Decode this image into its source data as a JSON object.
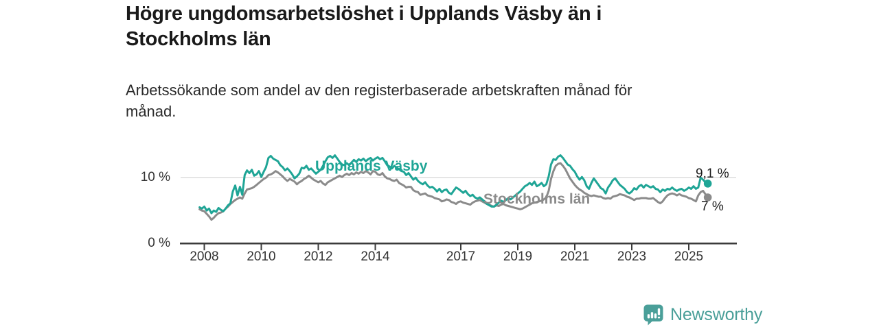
{
  "header": {
    "title_line1": "Högre ungdomsarbetslöshet i Upplands Väsby än i",
    "title_line2": "Stockholms län",
    "subtitle_line1": "Arbetssökande som andel av den registerbaserade arbetskraften månad för",
    "subtitle_line2": "månad."
  },
  "footer": {
    "brand": "Newsworthy",
    "brand_color": "#4a9f99",
    "logo_icon": "bar-chart-speech-bubble-icon"
  },
  "chart_data": {
    "type": "line",
    "title": "Högre ungdomsarbetslöshet i Upplands Väsby än i Stockholms län",
    "subtitle": "Arbetssökande som andel av den registerbaserade arbetskraften månad för månad.",
    "unit": "%",
    "x_start_year": 2007.8333,
    "x_step_years": 0.083333,
    "x_ticks": [
      2008,
      2010,
      2012,
      2014,
      2017,
      2019,
      2021,
      2023,
      2025
    ],
    "y_ticks": [
      {
        "label": "10 %",
        "value": 10
      },
      {
        "label": "0 %",
        "value": 0
      }
    ],
    "ylim": [
      0,
      14.8
    ],
    "xlim": [
      2007.2,
      2026.7
    ],
    "grid": "single horizontal gridline at 10 %",
    "legend_position": "inline labels on lines, end-value labels at right",
    "axis_color": "#3b3b3b",
    "grid_color": "#d9d9d9",
    "series": [
      {
        "name": "Upplands Väsby",
        "color": "#1fa596",
        "end_label": "9,1 %",
        "end_value": 9.1,
        "values": [
          5.5,
          5.3,
          5.6,
          5.0,
          5.3,
          4.6,
          5.0,
          4.8,
          5.4,
          5.1,
          4.9,
          5.3,
          5.8,
          6.1,
          7.9,
          8.8,
          7.3,
          8.6,
          7.4,
          10.4,
          11.1,
          10.7,
          11.2,
          10.3,
          10.5,
          11.0,
          10.1,
          10.9,
          11.6,
          13.0,
          13.3,
          12.9,
          12.7,
          12.5,
          11.9,
          11.6,
          11.1,
          11.4,
          11.0,
          10.5,
          9.9,
          10.2,
          10.6,
          11.5,
          11.4,
          11.8,
          11.2,
          11.4,
          11.0,
          10.6,
          10.9,
          11.2,
          11.8,
          12.5,
          13.1,
          13.3,
          13.0,
          13.4,
          12.9,
          12.4,
          12.0,
          11.9,
          12.2,
          11.9,
          12.3,
          12.7,
          12.4,
          12.8,
          12.6,
          12.9,
          12.5,
          12.8,
          13.0,
          12.6,
          12.9,
          13.1,
          12.8,
          13.0,
          12.5,
          11.9,
          11.7,
          11.4,
          11.8,
          11.5,
          11.3,
          11.0,
          10.9,
          10.4,
          10.7,
          10.2,
          9.7,
          10.0,
          9.5,
          9.2,
          9.0,
          9.3,
          8.8,
          8.5,
          8.6,
          8.3,
          7.9,
          8.3,
          7.8,
          8.1,
          8.2,
          7.7,
          7.5,
          8.0,
          8.5,
          8.3,
          8.0,
          7.7,
          8.0,
          7.5,
          7.2,
          7.4,
          7.0,
          6.8,
          7.0,
          6.7,
          6.4,
          6.0,
          5.8,
          5.6,
          5.6,
          5.9,
          6.2,
          6.5,
          6.3,
          6.6,
          6.9,
          6.7,
          7.0,
          7.3,
          7.6,
          7.9,
          8.3,
          8.7,
          8.9,
          9.2,
          8.9,
          9.4,
          8.7,
          8.9,
          9.2,
          8.7,
          9.0,
          10.2,
          12.0,
          12.8,
          12.7,
          13.2,
          13.4,
          13.0,
          12.5,
          12.0,
          11.8,
          11.3,
          10.9,
          10.2,
          9.7,
          10.1,
          9.6,
          8.7,
          8.3,
          9.2,
          9.9,
          9.4,
          8.9,
          8.4,
          8.2,
          7.6,
          8.5,
          9.0,
          9.6,
          9.9,
          9.4,
          8.9,
          8.6,
          8.3,
          7.8,
          7.6,
          7.9,
          8.4,
          8.2,
          8.7,
          8.9,
          8.5,
          8.9,
          8.7,
          8.5,
          8.7,
          8.3,
          8.2,
          7.8,
          8.2,
          8.0,
          8.3,
          8.2,
          8.5,
          8.2,
          8.0,
          8.2,
          8.3,
          8.0,
          8.2,
          8.5,
          8.3,
          8.7,
          8.3,
          8.5,
          10.0,
          9.7,
          9.3,
          9.1
        ]
      },
      {
        "name": "Stockholms län",
        "color": "#8b8b8b",
        "end_label": "7 %",
        "end_value": 7.0,
        "values": [
          5.2,
          5.0,
          4.9,
          4.5,
          4.1,
          3.6,
          3.9,
          4.3,
          4.6,
          4.7,
          4.9,
          5.3,
          5.6,
          6.0,
          6.3,
          6.6,
          6.8,
          7.0,
          6.8,
          7.6,
          8.2,
          8.3,
          8.4,
          8.6,
          8.9,
          9.2,
          9.5,
          9.8,
          10.0,
          10.4,
          10.5,
          10.7,
          11.0,
          10.8,
          10.5,
          10.2,
          9.8,
          9.5,
          9.8,
          9.6,
          9.4,
          9.0,
          9.3,
          9.5,
          9.8,
          10.0,
          10.3,
          10.0,
          9.7,
          9.5,
          9.3,
          9.5,
          9.1,
          8.9,
          9.3,
          9.5,
          9.7,
          9.9,
          10.1,
          10.3,
          10.1,
          10.4,
          10.6,
          10.4,
          10.7,
          10.5,
          10.8,
          10.6,
          10.9,
          10.7,
          11.0,
          10.8,
          10.5,
          11.0,
          10.9,
          10.5,
          10.4,
          10.7,
          10.2,
          9.9,
          9.8,
          9.6,
          9.5,
          9.7,
          9.2,
          9.0,
          8.8,
          8.5,
          8.6,
          8.6,
          8.1,
          7.9,
          7.8,
          7.4,
          7.5,
          7.6,
          7.3,
          7.2,
          7.1,
          6.9,
          6.8,
          6.7,
          6.4,
          6.5,
          6.7,
          6.6,
          6.3,
          6.2,
          6.0,
          6.3,
          6.4,
          6.2,
          6.1,
          6.0,
          5.9,
          6.2,
          6.4,
          6.5,
          6.6,
          6.4,
          6.2,
          6.0,
          5.9,
          5.7,
          5.6,
          5.8,
          5.7,
          5.9,
          6.0,
          5.8,
          5.7,
          5.6,
          5.5,
          5.4,
          5.3,
          5.2,
          5.3,
          5.5,
          5.7,
          5.9,
          6.1,
          6.2,
          6.3,
          6.4,
          6.5,
          6.7,
          7.0,
          8.0,
          9.8,
          11.0,
          11.8,
          12.1,
          12.2,
          11.8,
          11.3,
          10.6,
          9.9,
          9.4,
          8.9,
          8.5,
          8.2,
          8.0,
          7.7,
          7.5,
          7.3,
          7.2,
          7.3,
          7.2,
          7.1,
          7.1,
          6.9,
          6.8,
          6.9,
          6.8,
          7.1,
          7.2,
          7.3,
          7.5,
          7.4,
          7.3,
          7.1,
          7.0,
          6.8,
          6.6,
          6.8,
          6.8,
          6.9,
          6.9,
          6.9,
          6.8,
          6.8,
          6.9,
          6.6,
          6.3,
          6.1,
          6.4,
          6.9,
          7.3,
          7.5,
          7.6,
          7.5,
          7.3,
          7.5,
          7.3,
          7.2,
          7.1,
          6.9,
          6.8,
          6.6,
          6.4,
          7.3,
          7.8,
          8.0,
          7.5,
          7.0
        ]
      }
    ]
  }
}
